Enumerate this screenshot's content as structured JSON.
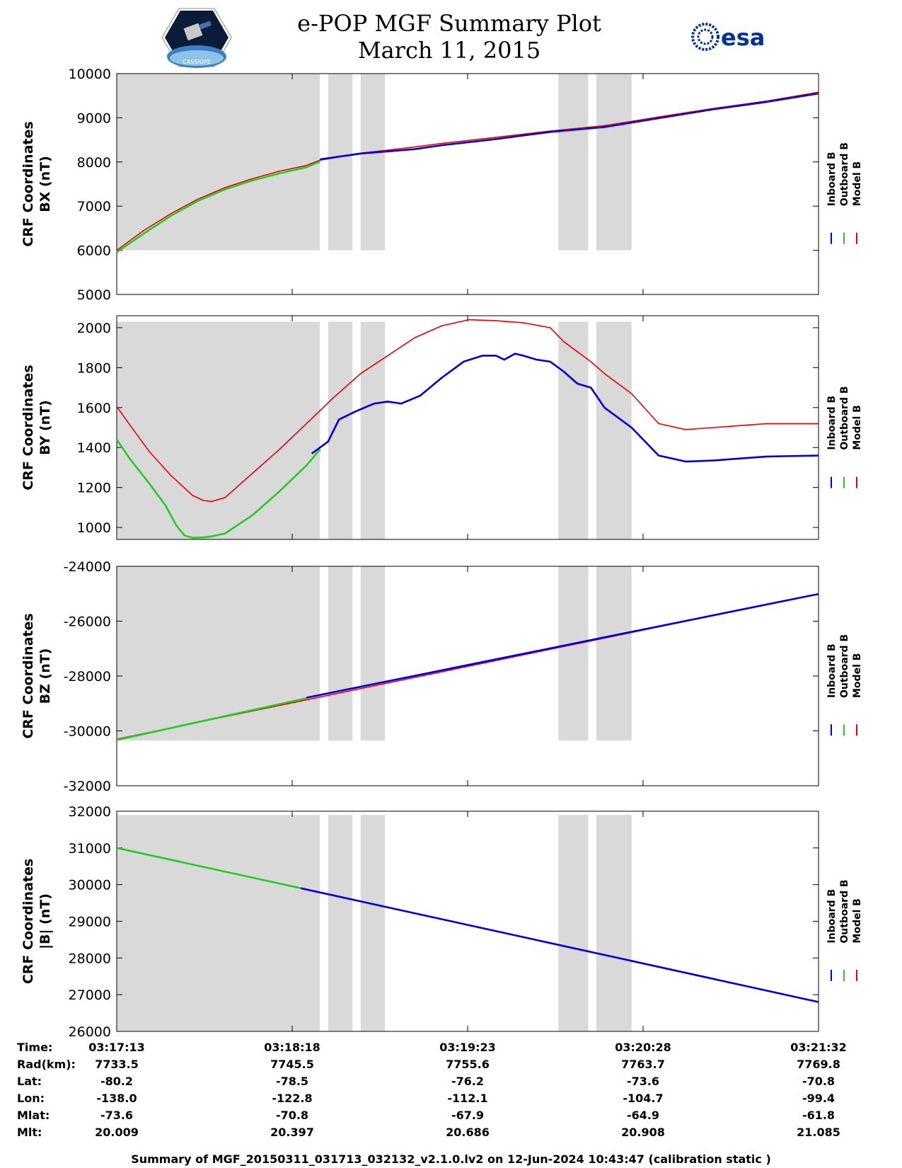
{
  "header": {
    "title_line1": "e-POP MGF Summary Plot",
    "title_line2": "March 11, 2015",
    "left_logo": "cassiope-mission-patch",
    "left_logo_text": "CASSIOPE",
    "right_logo": "esa-logo",
    "right_logo_text": "esa"
  },
  "footer": {
    "text": "Summary of MGF_20150311_031713_032132_v2.1.0.lv2 on 12-Jun-2024 10:43:47 (calibration static )"
  },
  "colors": {
    "inboard": "#0000dd",
    "outboard": "#22cc22",
    "model": "#ee0000",
    "shade": "#d9d9d9"
  },
  "chart_data": {
    "type": "line",
    "x_unit": "seconds since 03:17:13",
    "x_range": [
      0,
      259
    ],
    "shaded_intervals": [
      [
        0,
        75
      ],
      [
        78,
        87
      ],
      [
        90,
        99
      ],
      [
        163,
        174
      ],
      [
        177,
        190
      ]
    ],
    "panels": [
      {
        "ylabel_line1": "CRF Coordinates",
        "ylabel_line2": "BX (nT)",
        "ylim": [
          5000,
          10000
        ],
        "yticks": [
          5000,
          6000,
          7000,
          8000,
          9000,
          10000
        ],
        "shade_range": [
          6000,
          10000
        ],
        "series": [
          {
            "name": "Model B",
            "x": [
              0,
              10,
              20,
              30,
              40,
              50,
              60,
              70,
              75,
              90,
              100,
              110,
              120,
              140,
              160,
              180,
              200,
              220,
              240,
              259
            ],
            "values": [
              6000,
              6450,
              6830,
              7160,
              7420,
              7620,
              7790,
              7920,
              8040,
              8200,
              8270,
              8340,
              8420,
              8560,
              8700,
              8820,
              9020,
              9210,
              9380,
              9580
            ]
          },
          {
            "name": "Inboard B",
            "x": [
              75,
              90,
              100,
              110,
              120,
              140,
              160,
              180,
              200,
              220,
              240,
              259
            ],
            "values": [
              8060,
              8190,
              8240,
              8290,
              8380,
              8520,
              8680,
              8790,
              8990,
              9190,
              9360,
              9550
            ]
          },
          {
            "name": "Outboard B",
            "x": [
              0,
              10,
              20,
              30,
              40,
              50,
              60,
              70,
              75
            ],
            "values": [
              5960,
              6380,
              6780,
              7120,
              7380,
              7580,
              7740,
              7880,
              8010
            ]
          }
        ]
      },
      {
        "ylabel_line1": "CRF Coordinates",
        "ylabel_line2": "BY (nT)",
        "ylim": [
          940,
          2060
        ],
        "yticks": [
          1000,
          1200,
          1400,
          1600,
          1800,
          2000
        ],
        "shade_range": [
          940,
          2030
        ],
        "series": [
          {
            "name": "Model B",
            "x": [
              0,
              5,
              12,
              20,
              28,
              32,
              35,
              40,
              50,
              60,
              70,
              80,
              90,
              100,
              110,
              120,
              130,
              140,
              150,
              160,
              165,
              170,
              175,
              180,
              190,
              200,
              210,
              220,
              230,
              240,
              259
            ],
            "values": [
              1605,
              1510,
              1380,
              1260,
              1160,
              1135,
              1130,
              1150,
              1270,
              1390,
              1520,
              1650,
              1770,
              1860,
              1950,
              2010,
              2040,
              2035,
              2025,
              2000,
              1930,
              1880,
              1830,
              1770,
              1670,
              1520,
              1490,
              1500,
              1510,
              1520,
              1520
            ]
          },
          {
            "name": "Outboard B",
            "x": [
              0,
              5,
              12,
              18,
              22,
              25,
              28,
              32,
              35,
              40,
              50,
              60,
              70,
              75
            ],
            "values": [
              1440,
              1340,
              1220,
              1110,
              1010,
              960,
              948,
              950,
              955,
              970,
              1060,
              1180,
              1310,
              1390
            ]
          },
          {
            "name": "Inboard B",
            "x": [
              72,
              78,
              82,
              88,
              95,
              100,
              105,
              112,
              120,
              128,
              135,
              140,
              143,
              147,
              150,
              155,
              160,
              165,
              170,
              175,
              180,
              190,
              200,
              210,
              220,
              230,
              240,
              259
            ],
            "values": [
              1370,
              1430,
              1540,
              1580,
              1620,
              1630,
              1620,
              1660,
              1750,
              1830,
              1860,
              1860,
              1840,
              1870,
              1860,
              1840,
              1830,
              1780,
              1720,
              1700,
              1600,
              1500,
              1360,
              1330,
              1335,
              1345,
              1355,
              1360
            ]
          }
        ]
      },
      {
        "ylabel_line1": "CRF Coordinates",
        "ylabel_line2": "BZ (nT)",
        "ylim": [
          -32000,
          -24000
        ],
        "yticks": [
          -32000,
          -30000,
          -28000,
          -26000,
          -24000
        ],
        "shade_range": [
          -30350,
          -24000
        ],
        "series": [
          {
            "name": "Model B",
            "x": [
              0,
              259
            ],
            "values": [
              -30300,
              -25000
            ]
          },
          {
            "name": "Inboard B",
            "x": [
              70,
              259
            ],
            "values": [
              -28790,
              -25010
            ]
          },
          {
            "name": "Outboard B",
            "x": [
              0,
              70
            ],
            "values": [
              -30330,
              -28810
            ]
          }
        ]
      },
      {
        "ylabel_line1": "CRF Coordinates",
        "ylabel_line2": "|B| (nT)",
        "ylim": [
          26000,
          32000
        ],
        "yticks": [
          26000,
          27000,
          28000,
          29000,
          30000,
          31000,
          32000
        ],
        "shade_range": [
          26000,
          31900
        ],
        "series": [
          {
            "name": "Model B",
            "x": [
              0,
              259
            ],
            "values": [
              31000,
              26800
            ]
          },
          {
            "name": "Inboard B",
            "x": [
              68,
              259
            ],
            "values": [
              29900,
              26800
            ]
          },
          {
            "name": "Outboard B",
            "x": [
              0,
              68
            ],
            "values": [
              31000,
              29900
            ]
          }
        ]
      }
    ],
    "legend_labels": [
      "Inboard B",
      "Outboard B",
      "Model B"
    ],
    "xticks": [
      "03:17:13",
      "03:18:18",
      "03:19:23",
      "03:20:28",
      "03:21:32"
    ],
    "ephemeris": {
      "rows": [
        {
          "label": "Time:",
          "values": [
            "03:17:13",
            "03:18:18",
            "03:19:23",
            "03:20:28",
            "03:21:32"
          ]
        },
        {
          "label": "Rad(km):",
          "values": [
            "7733.5",
            "7745.5",
            "7755.6",
            "7763.7",
            "7769.8"
          ]
        },
        {
          "label": "Lat:",
          "values": [
            "-80.2",
            "-78.5",
            "-76.2",
            "-73.6",
            "-70.8"
          ]
        },
        {
          "label": "Lon:",
          "values": [
            "-138.0",
            "-122.8",
            "-112.1",
            "-104.7",
            "-99.4"
          ]
        },
        {
          "label": "Mlat:",
          "values": [
            "-73.6",
            "-70.8",
            "-67.9",
            "-64.9",
            "-61.8"
          ]
        },
        {
          "label": "Mlt:",
          "values": [
            "20.009",
            "20.397",
            "20.686",
            "20.908",
            "21.085"
          ]
        }
      ]
    }
  }
}
